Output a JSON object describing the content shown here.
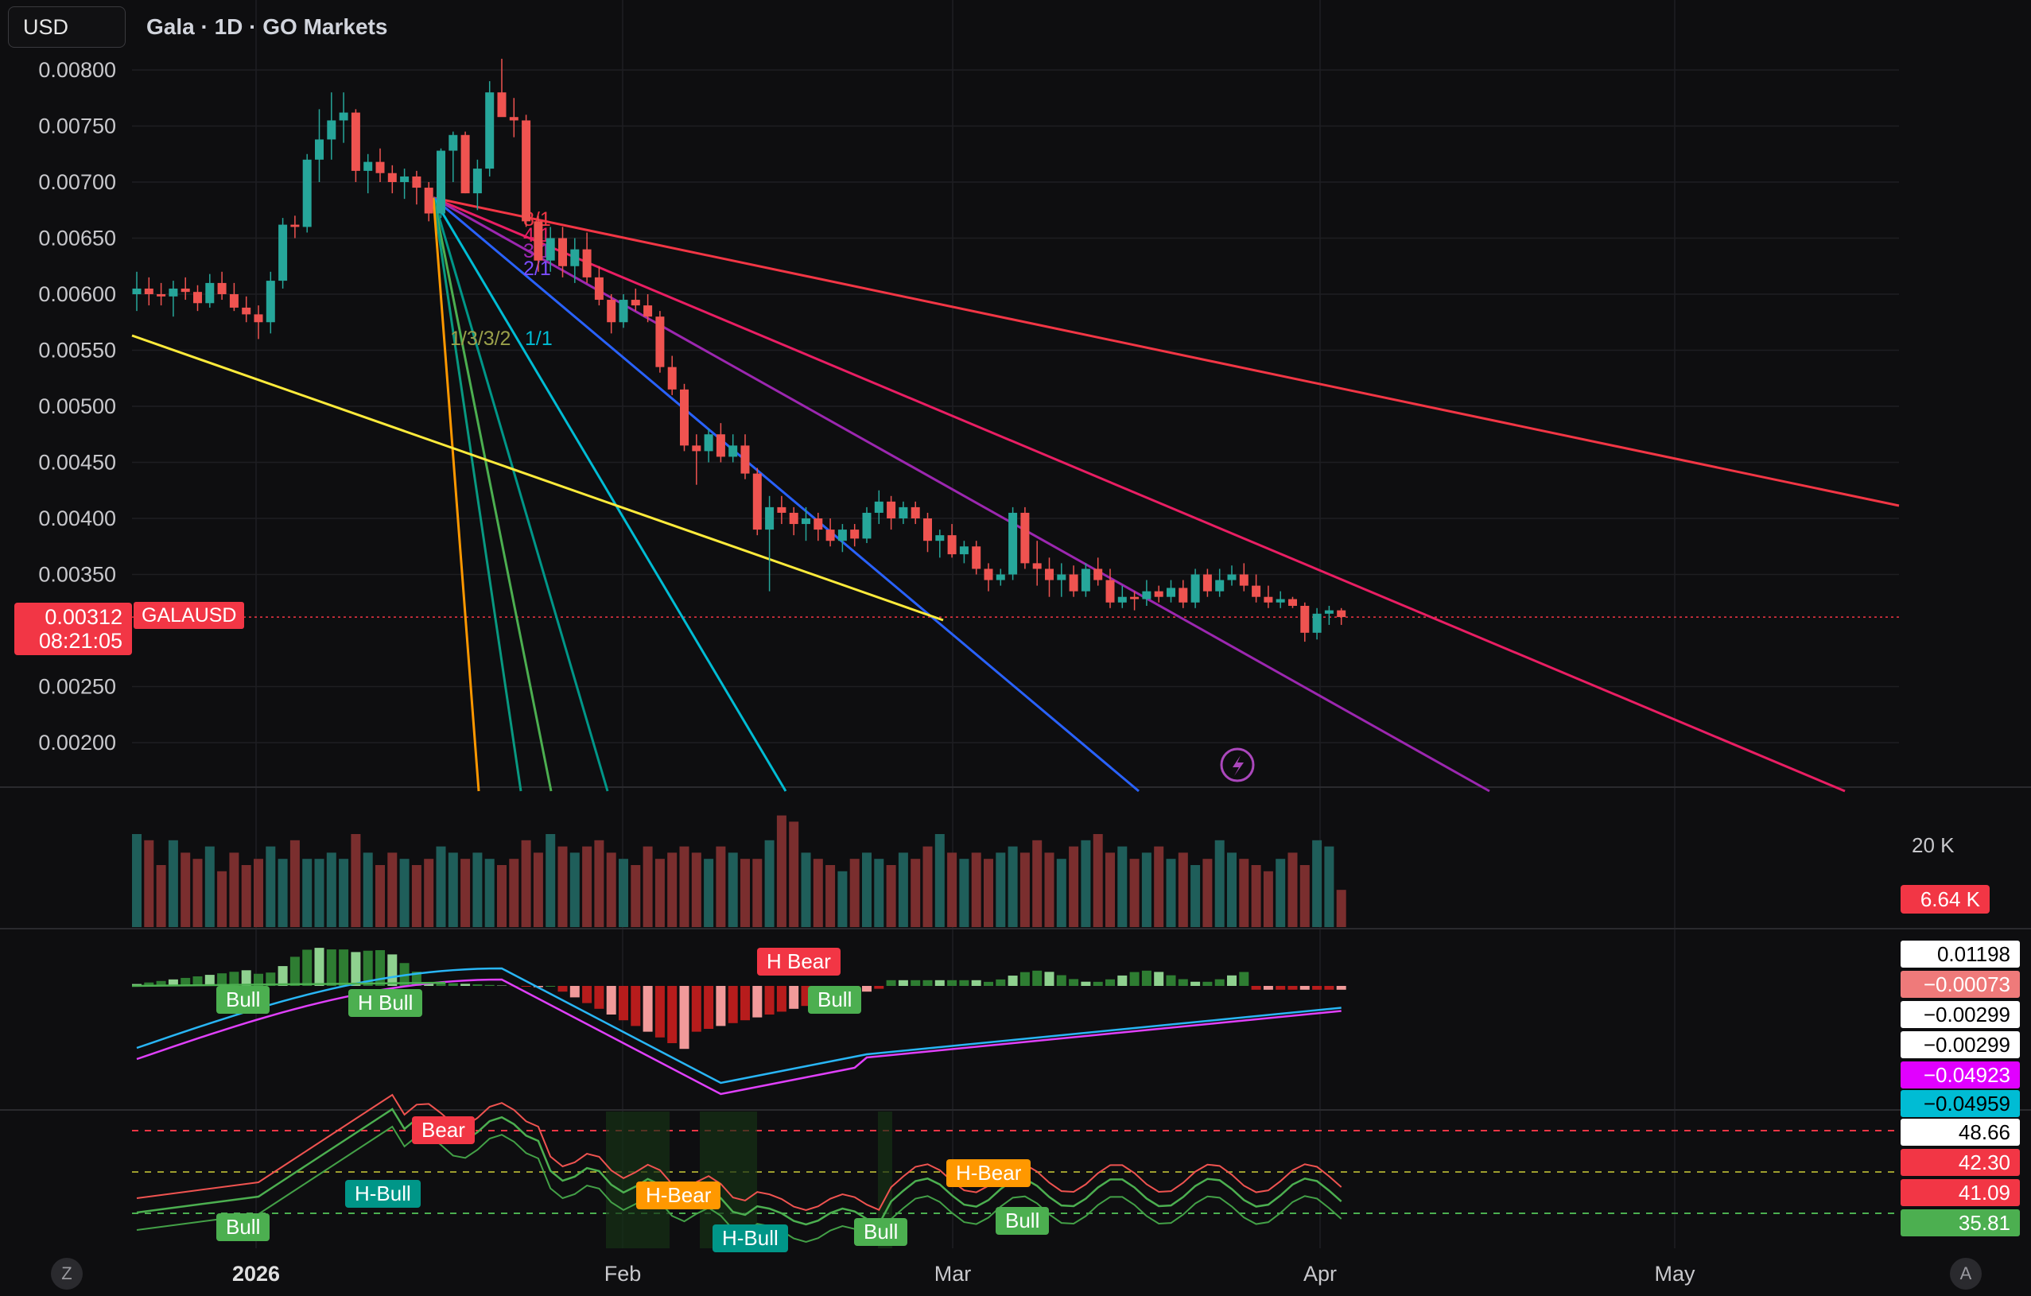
{
  "header": {
    "currency": "USD",
    "title": "Gala · 1D · GO Markets"
  },
  "price_axis": {
    "ticks": [
      "0.00800",
      "0.00750",
      "0.00700",
      "0.00650",
      "0.00600",
      "0.00550",
      "0.00500",
      "0.00450",
      "0.00400",
      "0.00350",
      "0.00250",
      "0.00200"
    ],
    "current_price": "0.00312",
    "countdown": "08:21:05",
    "symbol": "GALAUSD"
  },
  "time_axis": {
    "labels": [
      "2026",
      "Feb",
      "Mar",
      "Apr",
      "May"
    ]
  },
  "fan_labels": [
    "8/1",
    "4/1",
    "3/1",
    "2/1",
    "1/1",
    "1/3/3/2"
  ],
  "volume_pane": {
    "scale_label": "20 K",
    "current_value": "6.64 K"
  },
  "macd_pane": {
    "values": [
      {
        "text": "0.01198",
        "bg": "#ffffff",
        "fg": "#000000"
      },
      {
        "text": "−0.00073",
        "bg": "#ef7a7a",
        "fg": "#ffffff"
      },
      {
        "text": "−0.00299",
        "bg": "#ffffff",
        "fg": "#000000"
      },
      {
        "text": "−0.00299",
        "bg": "#ffffff",
        "fg": "#000000"
      },
      {
        "text": "−0.04923",
        "bg": "#e100ff",
        "fg": "#ffffff"
      },
      {
        "text": "−0.04959",
        "bg": "#00bcd4",
        "fg": "#000000"
      }
    ],
    "signals": [
      {
        "text": "Bull",
        "color": "#4caf50"
      },
      {
        "text": "H Bull",
        "color": "#4caf50"
      },
      {
        "text": "H Bear",
        "color": "#f23645"
      },
      {
        "text": "Bull",
        "color": "#4caf50"
      }
    ]
  },
  "rsi_pane": {
    "values": [
      {
        "text": "48.66",
        "bg": "#ffffff",
        "fg": "#000000"
      },
      {
        "text": "42.30",
        "bg": "#f23645",
        "fg": "#ffffff"
      },
      {
        "text": "41.09",
        "bg": "#f23645",
        "fg": "#ffffff"
      },
      {
        "text": "35.81",
        "bg": "#4caf50",
        "fg": "#ffffff"
      }
    ],
    "signals": [
      {
        "text": "Bear",
        "color": "#f23645"
      },
      {
        "text": "H-Bull",
        "color": "#009688"
      },
      {
        "text": "Bull",
        "color": "#4caf50"
      },
      {
        "text": "H-Bear",
        "color": "#ff9800"
      },
      {
        "text": "H-Bull",
        "color": "#009688"
      },
      {
        "text": "Bull",
        "color": "#4caf50"
      },
      {
        "text": "H-Bear",
        "color": "#ff9800"
      },
      {
        "text": "Bull",
        "color": "#4caf50"
      }
    ]
  },
  "corner_buttons": {
    "left": "Z",
    "right": "A"
  },
  "colors": {
    "up": "#26a69a",
    "down": "#ef5350",
    "bg": "#0e0e10"
  },
  "chart_data": {
    "type": "candlestick",
    "title": "Gala · 1D · GO Markets",
    "xlabel": "",
    "ylabel": "",
    "ylim": [
      0.0016,
      0.0081
    ],
    "x_start": "2025-12-16",
    "x_labels": [
      "2026",
      "Feb",
      "Mar",
      "Apr",
      "May"
    ],
    "grid": true,
    "candles_ohlc": [
      [
        0.006,
        0.0062,
        0.00585,
        0.00605
      ],
      [
        0.00605,
        0.00615,
        0.0059,
        0.006
      ],
      [
        0.006,
        0.0061,
        0.0059,
        0.00598
      ],
      [
        0.00598,
        0.00612,
        0.0058,
        0.00605
      ],
      [
        0.00605,
        0.00615,
        0.00595,
        0.00602
      ],
      [
        0.00602,
        0.00608,
        0.00585,
        0.00592
      ],
      [
        0.00592,
        0.00618,
        0.00588,
        0.0061
      ],
      [
        0.0061,
        0.0062,
        0.00595,
        0.006
      ],
      [
        0.006,
        0.0061,
        0.00585,
        0.00588
      ],
      [
        0.00588,
        0.00598,
        0.00575,
        0.00582
      ],
      [
        0.00582,
        0.0059,
        0.0056,
        0.00575
      ],
      [
        0.00575,
        0.0062,
        0.00565,
        0.00612
      ],
      [
        0.00612,
        0.00668,
        0.00605,
        0.00662
      ],
      [
        0.00662,
        0.0067,
        0.0065,
        0.0066
      ],
      [
        0.0066,
        0.00725,
        0.00655,
        0.0072
      ],
      [
        0.0072,
        0.00765,
        0.007,
        0.00738
      ],
      [
        0.00738,
        0.0078,
        0.0072,
        0.00755
      ],
      [
        0.00755,
        0.0078,
        0.00735,
        0.00762
      ],
      [
        0.00762,
        0.00765,
        0.007,
        0.0071
      ],
      [
        0.0071,
        0.00725,
        0.0069,
        0.00718
      ],
      [
        0.00718,
        0.0073,
        0.007,
        0.00708
      ],
      [
        0.00708,
        0.00715,
        0.0069,
        0.007
      ],
      [
        0.007,
        0.00712,
        0.00685,
        0.00705
      ],
      [
        0.00705,
        0.0071,
        0.0068,
        0.00695
      ],
      [
        0.00695,
        0.007,
        0.00665,
        0.00672
      ],
      [
        0.00672,
        0.0073,
        0.00668,
        0.00728
      ],
      [
        0.00728,
        0.00745,
        0.007,
        0.00742
      ],
      [
        0.00742,
        0.00745,
        0.0069,
        0.0069
      ],
      [
        0.0069,
        0.0072,
        0.00675,
        0.00712
      ],
      [
        0.00712,
        0.0079,
        0.00705,
        0.0078
      ],
      [
        0.0078,
        0.0081,
        0.00765,
        0.00758
      ],
      [
        0.00758,
        0.00775,
        0.0074,
        0.00755
      ],
      [
        0.00755,
        0.0076,
        0.0066,
        0.00665
      ],
      [
        0.00665,
        0.0067,
        0.0062,
        0.0063
      ],
      [
        0.0063,
        0.0066,
        0.0062,
        0.0065
      ],
      [
        0.0065,
        0.0066,
        0.00615,
        0.00625
      ],
      [
        0.00625,
        0.0065,
        0.0061,
        0.0064
      ],
      [
        0.0064,
        0.00655,
        0.0061,
        0.00615
      ],
      [
        0.00615,
        0.00625,
        0.0059,
        0.00595
      ],
      [
        0.00595,
        0.006,
        0.00565,
        0.00575
      ],
      [
        0.00575,
        0.006,
        0.0057,
        0.00595
      ],
      [
        0.00595,
        0.00605,
        0.00585,
        0.0059
      ],
      [
        0.0059,
        0.006,
        0.00575,
        0.0058
      ],
      [
        0.0058,
        0.00585,
        0.0053,
        0.00535
      ],
      [
        0.00535,
        0.00545,
        0.0051,
        0.00515
      ],
      [
        0.00515,
        0.0052,
        0.0046,
        0.00465
      ],
      [
        0.00465,
        0.00475,
        0.0043,
        0.0046
      ],
      [
        0.0046,
        0.0048,
        0.0045,
        0.00475
      ],
      [
        0.00475,
        0.00485,
        0.0045,
        0.00455
      ],
      [
        0.00455,
        0.00475,
        0.0045,
        0.00465
      ],
      [
        0.00465,
        0.00475,
        0.00435,
        0.0044
      ],
      [
        0.0044,
        0.00445,
        0.00385,
        0.0039
      ],
      [
        0.0039,
        0.0042,
        0.00335,
        0.0041
      ],
      [
        0.0041,
        0.0042,
        0.00395,
        0.00405
      ],
      [
        0.00405,
        0.0041,
        0.00385,
        0.00395
      ],
      [
        0.00395,
        0.0041,
        0.0038,
        0.004
      ],
      [
        0.004,
        0.00405,
        0.0038,
        0.0039
      ],
      [
        0.0039,
        0.004,
        0.00375,
        0.0038
      ],
      [
        0.0038,
        0.00395,
        0.0037,
        0.0039
      ],
      [
        0.0039,
        0.00395,
        0.00375,
        0.00382
      ],
      [
        0.00382,
        0.0041,
        0.00378,
        0.00405
      ],
      [
        0.00405,
        0.00425,
        0.00395,
        0.00415
      ],
      [
        0.00415,
        0.0042,
        0.0039,
        0.004
      ],
      [
        0.004,
        0.00415,
        0.00395,
        0.0041
      ],
      [
        0.0041,
        0.00415,
        0.00395,
        0.004
      ],
      [
        0.004,
        0.00405,
        0.0037,
        0.0038
      ],
      [
        0.0038,
        0.0039,
        0.00365,
        0.00385
      ],
      [
        0.00385,
        0.00395,
        0.00365,
        0.00368
      ],
      [
        0.00368,
        0.0038,
        0.0036,
        0.00375
      ],
      [
        0.00375,
        0.0038,
        0.0035,
        0.00355
      ],
      [
        0.00355,
        0.0036,
        0.00335,
        0.00345
      ],
      [
        0.00345,
        0.00355,
        0.0034,
        0.0035
      ],
      [
        0.0035,
        0.0041,
        0.00345,
        0.00405
      ],
      [
        0.00405,
        0.0041,
        0.00355,
        0.0036
      ],
      [
        0.0036,
        0.0038,
        0.0034,
        0.00355
      ],
      [
        0.00355,
        0.00365,
        0.0033,
        0.00345
      ],
      [
        0.00345,
        0.0036,
        0.0033,
        0.0035
      ],
      [
        0.0035,
        0.00358,
        0.0033,
        0.00335
      ],
      [
        0.00335,
        0.0036,
        0.0033,
        0.00355
      ],
      [
        0.00355,
        0.00365,
        0.0034,
        0.00345
      ],
      [
        0.00345,
        0.00355,
        0.0032,
        0.00325
      ],
      [
        0.00325,
        0.0034,
        0.0032,
        0.0033
      ],
      [
        0.0033,
        0.00335,
        0.00318,
        0.00328
      ],
      [
        0.00328,
        0.00345,
        0.00322,
        0.00335
      ],
      [
        0.00335,
        0.0034,
        0.00325,
        0.0033
      ],
      [
        0.0033,
        0.00345,
        0.00325,
        0.00338
      ],
      [
        0.00338,
        0.00345,
        0.0032,
        0.00325
      ],
      [
        0.00325,
        0.00355,
        0.0032,
        0.0035
      ],
      [
        0.0035,
        0.00355,
        0.0033,
        0.00335
      ],
      [
        0.00335,
        0.00355,
        0.0033,
        0.00345
      ],
      [
        0.00345,
        0.00358,
        0.0034,
        0.0035
      ],
      [
        0.0035,
        0.0036,
        0.00335,
        0.0034
      ],
      [
        0.0034,
        0.0035,
        0.00325,
        0.0033
      ],
      [
        0.0033,
        0.0034,
        0.0032,
        0.00325
      ],
      [
        0.00325,
        0.00335,
        0.0032,
        0.00328
      ],
      [
        0.00328,
        0.0033,
        0.0032,
        0.00322
      ],
      [
        0.00322,
        0.00325,
        0.0029,
        0.00298
      ],
      [
        0.00298,
        0.0032,
        0.00292,
        0.00315
      ],
      [
        0.00315,
        0.00322,
        0.00305,
        0.00318
      ],
      [
        0.00318,
        0.0032,
        0.00305,
        0.00312
      ]
    ],
    "volume": [
      15,
      14,
      10,
      14,
      12,
      11,
      13,
      9,
      12,
      10,
      11,
      13,
      11,
      14,
      11,
      11,
      12,
      11,
      15,
      12,
      10,
      12,
      11,
      10,
      11,
      13,
      12,
      11,
      12,
      11,
      10,
      11,
      14,
      12,
      15,
      13,
      12,
      13,
      14,
      12,
      11,
      10,
      13,
      11,
      12,
      13,
      12,
      11,
      13,
      12,
      11,
      11,
      14,
      18,
      17,
      12,
      11,
      10,
      9,
      11,
      12,
      11,
      10,
      12,
      11,
      13,
      15,
      12,
      11,
      12,
      11,
      12,
      13,
      12,
      14,
      12,
      11,
      13,
      14,
      15,
      12,
      13,
      11,
      12,
      13,
      11,
      12,
      10,
      11,
      14,
      12,
      11,
      10,
      9,
      11,
      12,
      10,
      14,
      13,
      6
    ]
  }
}
